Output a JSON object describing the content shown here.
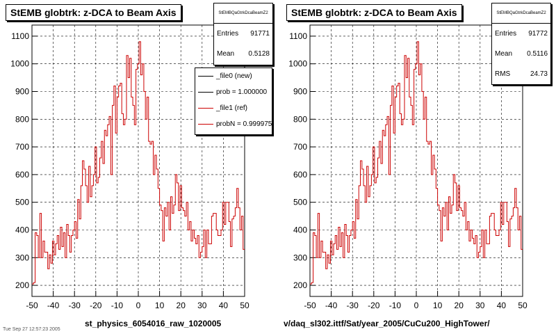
{
  "chart_data": [
    {
      "type": "bar",
      "title": "StEMB globtrk: z-DCA to Beam Axis",
      "xlabel": "st_physics_6054016_raw_1020005",
      "ylabel": "",
      "xlim": [
        -50,
        50
      ],
      "ylim": [
        160,
        1140
      ],
      "xticks": [
        -50,
        -40,
        -30,
        -20,
        -10,
        0,
        10,
        20,
        30,
        40,
        50
      ],
      "yticks": [
        200,
        300,
        400,
        500,
        600,
        700,
        800,
        900,
        1000,
        1100
      ],
      "grid": true,
      "stats": {
        "name": "StEMBQaGtrkDcaBeamZ2",
        "entries_label": "Entries",
        "entries": "91771",
        "mean_label": "Mean",
        "mean": "0.5128"
      },
      "legend": {
        "placement": "top-right",
        "entries": [
          {
            "label": "_file0 (new)",
            "color": "#000000"
          },
          {
            "label": "prob = 1.000000",
            "color": "#000000"
          },
          {
            "label": "_file1 (ref)",
            "color": "#cc0000"
          },
          {
            "label": "probN = 0.999975",
            "color": "#cc0000"
          }
        ]
      },
      "series": [
        {
          "color": "#cc0000",
          "values": [
            205,
            210,
            390,
            380,
            300,
            460,
            300,
            360,
            320,
            320,
            260,
            310,
            280,
            360,
            310,
            350,
            380,
            330,
            410,
            340,
            390,
            300,
            420,
            380,
            320,
            380,
            400,
            430,
            370,
            510,
            440,
            560,
            650,
            620,
            560,
            500,
            630,
            520,
            560,
            600,
            700,
            570,
            590,
            660,
            720,
            640,
            760,
            740,
            780,
            810,
            600,
            850,
            920,
            750,
            880,
            920,
            930,
            820,
            780,
            800,
            1030,
            950,
            1020,
            880,
            850,
            780,
            980,
            1000,
            1080,
            960,
            1000,
            900,
            800,
            880,
            720,
            710,
            720,
            600,
            670,
            620,
            550,
            490,
            470,
            360,
            480,
            450,
            500,
            400,
            520,
            460,
            490,
            600,
            570,
            470,
            560,
            480,
            470,
            450,
            500,
            400,
            430,
            360,
            400,
            370,
            350,
            380,
            300,
            320,
            340,
            400,
            300,
            400,
            350,
            350,
            450,
            460,
            460,
            400,
            380,
            380,
            400,
            500,
            420,
            500,
            500,
            430,
            340,
            440,
            450,
            480,
            550,
            480,
            400,
            450,
            330
          ]
        }
      ]
    },
    {
      "type": "bar",
      "title": "StEMB globtrk: z-DCA to Beam Axis",
      "xlabel": "v/daq_sl302.ittf/Sat/year_2005/CuCu200_HighTower/",
      "ylabel": "",
      "xlim": [
        -50,
        50
      ],
      "ylim": [
        160,
        1140
      ],
      "xticks": [
        -50,
        -40,
        -30,
        -20,
        -10,
        0,
        10,
        20,
        30,
        40,
        50
      ],
      "yticks": [
        200,
        300,
        400,
        500,
        600,
        700,
        800,
        900,
        1000,
        1100
      ],
      "grid": true,
      "stats": {
        "name": "StEMBQaGtrkDcaBeamZ2",
        "entries_label": "Entries",
        "entries": "91772",
        "mean_label": "Mean",
        "mean": "0.5116",
        "rms_label": "RMS",
        "rms": "24.73"
      },
      "series": [
        {
          "color": "#cc0000",
          "values": [
            205,
            210,
            390,
            380,
            300,
            460,
            300,
            360,
            320,
            320,
            260,
            310,
            280,
            360,
            310,
            350,
            380,
            330,
            410,
            340,
            390,
            300,
            420,
            380,
            320,
            380,
            400,
            430,
            370,
            510,
            440,
            560,
            650,
            620,
            560,
            500,
            630,
            520,
            560,
            600,
            700,
            570,
            590,
            660,
            720,
            640,
            760,
            740,
            780,
            810,
            600,
            850,
            920,
            750,
            880,
            920,
            930,
            820,
            780,
            800,
            1030,
            950,
            1020,
            880,
            850,
            780,
            980,
            1000,
            1080,
            960,
            1000,
            900,
            800,
            880,
            720,
            710,
            720,
            600,
            670,
            620,
            550,
            490,
            470,
            360,
            480,
            450,
            500,
            400,
            520,
            460,
            490,
            600,
            570,
            470,
            560,
            480,
            470,
            450,
            500,
            400,
            430,
            360,
            400,
            370,
            350,
            380,
            300,
            320,
            340,
            400,
            300,
            400,
            350,
            350,
            450,
            460,
            460,
            400,
            380,
            380,
            400,
            500,
            420,
            500,
            500,
            430,
            340,
            440,
            450,
            480,
            550,
            480,
            400,
            450,
            330
          ]
        }
      ]
    }
  ],
  "footer_text": "Tue Sep 27 12:57:23 2005"
}
